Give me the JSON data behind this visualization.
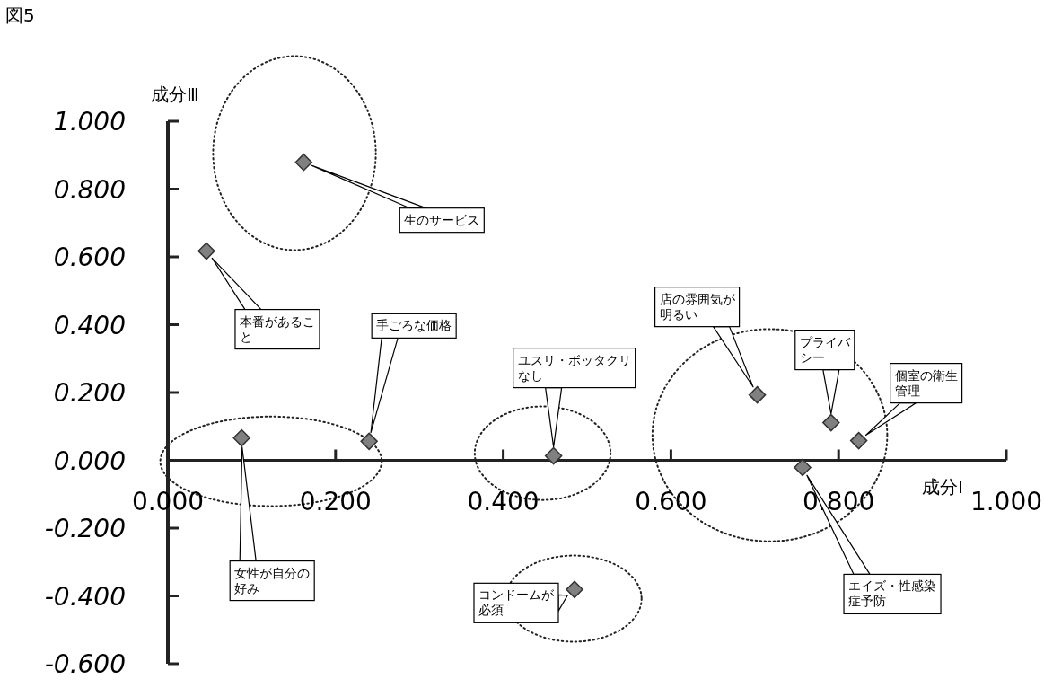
{
  "chart_data": {
    "type": "scatter",
    "title": "図5",
    "xlabel": "成分Ⅰ",
    "ylabel": "成分Ⅲ",
    "x": [
      0.162,
      0.046,
      0.088,
      0.24,
      0.46,
      0.703,
      0.791,
      0.824,
      0.757,
      0.485
    ],
    "values": [
      0.879,
      0.617,
      0.066,
      0.056,
      0.013,
      0.193,
      0.111,
      0.058,
      -0.021,
      -0.381
    ],
    "color": "#808080",
    "marker": "diamond",
    "xlim": [
      0,
      1.0
    ],
    "ylim": [
      -0.6,
      1.0
    ],
    "xticks": [
      {
        "value": 0,
        "label": "0.000"
      },
      {
        "value": 0.2,
        "label": "0.200"
      },
      {
        "value": 0.4,
        "label": "0.400"
      },
      {
        "value": 0.6,
        "label": "0.600"
      },
      {
        "value": 0.8,
        "label": "0.800"
      },
      {
        "value": 1.0,
        "label": "1.000"
      }
    ],
    "yticks": [
      {
        "value": -0.6,
        "label": "-0.600"
      },
      {
        "value": -0.4,
        "label": "-0.400"
      },
      {
        "value": -0.2,
        "label": "-0.200"
      },
      {
        "value": 0,
        "label": "0.000"
      },
      {
        "value": 0.2,
        "label": "0.200"
      },
      {
        "value": 0.4,
        "label": "0.400"
      },
      {
        "value": 0.6,
        "label": "0.600"
      },
      {
        "value": 0.8,
        "label": "0.800"
      },
      {
        "value": 1.0,
        "label": "1.000"
      }
    ],
    "annotations": [
      "生のサービス",
      "本番があること",
      "女性が自分の好み",
      "手ごろな価格",
      "ユスリ・ボッタクリなし",
      "店の雰囲気が明るい",
      "プライバシー",
      "個室の衛生管理",
      "エイズ・性感染症予防",
      "コンドームが必須"
    ]
  }
}
